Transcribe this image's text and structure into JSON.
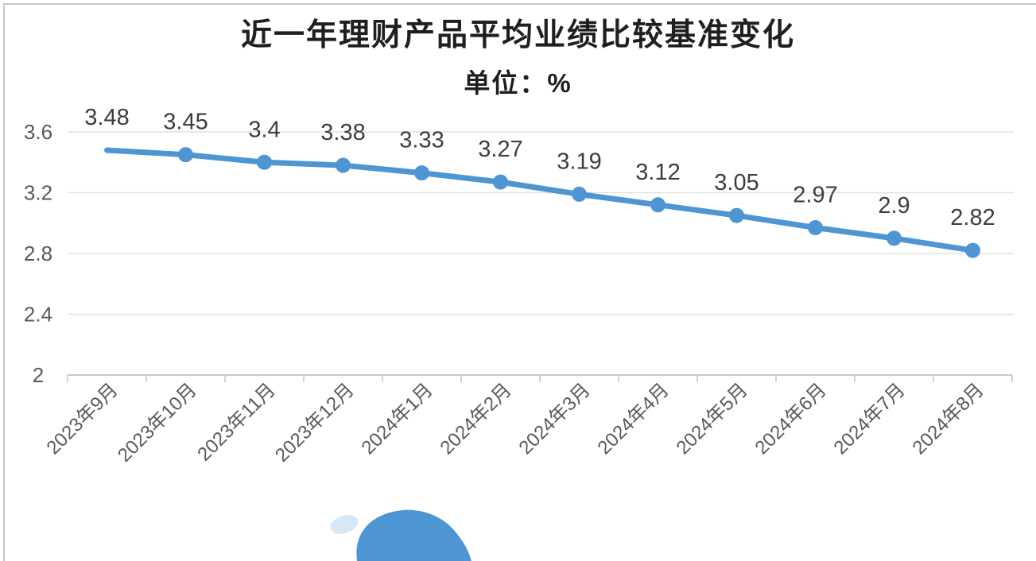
{
  "page": {
    "background": "#ffffff",
    "border_color": "#c6c6c6"
  },
  "chart_data": {
    "type": "line",
    "title": "近一年理财产品平均业绩比较基准变化",
    "subtitle": "单位：%",
    "categories": [
      "2023年9月",
      "2023年10月",
      "2023年11月",
      "2023年12月",
      "2024年1月",
      "2024年2月",
      "2024年3月",
      "2024年4月",
      "2024年5月",
      "2024年6月",
      "2024年7月",
      "2024年8月"
    ],
    "values": [
      3.48,
      3.45,
      3.4,
      3.38,
      3.33,
      3.27,
      3.19,
      3.12,
      3.05,
      2.97,
      2.9,
      2.82
    ],
    "data_labels": [
      "3.48",
      "3.45",
      "3.4",
      "3.38",
      "3.33",
      "3.27",
      "3.19",
      "3.12",
      "3.05",
      "2.97",
      "2.9",
      "2.82"
    ],
    "y_axis": {
      "tick_labels": [
        "3.6",
        "3.2",
        "2.8",
        "2.4",
        "2"
      ],
      "tick_values": [
        3.6,
        3.2,
        2.8,
        2.4,
        2
      ],
      "min": 2,
      "max": 3.6
    },
    "grid": true,
    "legend_position": "none",
    "marker": "circle",
    "first_point_has_marker": false,
    "colors": {
      "line": "#4e95d3",
      "marker": "#4e95d3",
      "data_label": "#3d3d3d",
      "axis_tick_label": "#595959",
      "gridline": "#e0e0e0",
      "axis_line": "#c9c9c9"
    }
  },
  "decoration": {
    "blob_color": "#4e95d3",
    "blob_highlight_color": "#b8d4ee"
  }
}
